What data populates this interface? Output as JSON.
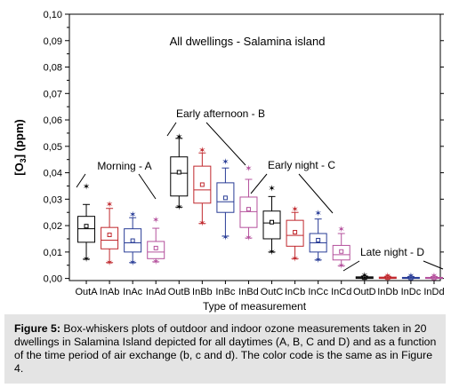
{
  "chart_data": {
    "type": "box",
    "title": "All dwellings - Salamina island",
    "ylabel": "[O3] (ppm)",
    "xlabel": "Type of measurement",
    "ylim": [
      0,
      0.1
    ],
    "yticks": [
      "0,00",
      "0,01",
      "0,02",
      "0,03",
      "0,04",
      "0,05",
      "0,06",
      "0,07",
      "0,08",
      "0,09",
      "0,10"
    ],
    "categories": [
      "OutA",
      "InAb",
      "InAc",
      "InAd",
      "OutB",
      "InBb",
      "InBc",
      "InBd",
      "OutC",
      "InCb",
      "InCc",
      "InCd",
      "OutD",
      "InDb",
      "InDc",
      "InDd"
    ],
    "series_colors": [
      "#000000",
      "#c0282d",
      "#283c96",
      "#b4509c"
    ],
    "boxes": [
      {
        "q1": 0.0137,
        "median": 0.0188,
        "q3": 0.0235,
        "mean": 0.0198,
        "wlo": 0.0073,
        "whi": 0.028,
        "pts": [
          0.0347,
          0.0073
        ]
      },
      {
        "q1": 0.0112,
        "median": 0.0145,
        "q3": 0.0193,
        "mean": 0.0165,
        "wlo": 0.006,
        "whi": 0.0265,
        "pts": [
          0.028,
          0.006
        ]
      },
      {
        "q1": 0.01,
        "median": 0.0135,
        "q3": 0.0188,
        "mean": 0.0143,
        "wlo": 0.006,
        "whi": 0.023,
        "pts": [
          0.024,
          0.006
        ]
      },
      {
        "q1": 0.0075,
        "median": 0.01,
        "q3": 0.014,
        "mean": 0.0115,
        "wlo": 0.0063,
        "whi": 0.019,
        "pts": [
          0.022,
          0.0063
        ]
      },
      {
        "q1": 0.0312,
        "median": 0.0398,
        "q3": 0.046,
        "mean": 0.0402,
        "wlo": 0.027,
        "whi": 0.053,
        "pts": [
          0.0535,
          0.027
        ]
      },
      {
        "q1": 0.0285,
        "median": 0.0335,
        "q3": 0.0425,
        "mean": 0.0355,
        "wlo": 0.0208,
        "whi": 0.0475,
        "pts": [
          0.0485,
          0.0208
        ]
      },
      {
        "q1": 0.025,
        "median": 0.029,
        "q3": 0.0362,
        "mean": 0.0305,
        "wlo": 0.016,
        "whi": 0.0418,
        "pts": [
          0.044,
          0.0155
        ]
      },
      {
        "q1": 0.0193,
        "median": 0.0253,
        "q3": 0.0308,
        "mean": 0.0262,
        "wlo": 0.0153,
        "whi": 0.0375,
        "pts": [
          0.0415,
          0.0153
        ]
      },
      {
        "q1": 0.015,
        "median": 0.021,
        "q3": 0.0255,
        "mean": 0.0213,
        "wlo": 0.01,
        "whi": 0.031,
        "pts": [
          0.034,
          0.01
        ]
      },
      {
        "q1": 0.0122,
        "median": 0.0163,
        "q3": 0.022,
        "mean": 0.0175,
        "wlo": 0.0075,
        "whi": 0.025,
        "pts": [
          0.026,
          0.0075
        ]
      },
      {
        "q1": 0.01,
        "median": 0.0135,
        "q3": 0.017,
        "mean": 0.0145,
        "wlo": 0.007,
        "whi": 0.0225,
        "pts": [
          0.0245,
          0.007
        ]
      },
      {
        "q1": 0.007,
        "median": 0.009,
        "q3": 0.0125,
        "mean": 0.0102,
        "wlo": 0.0048,
        "whi": 0.017,
        "pts": [
          0.0185,
          0.0048
        ]
      },
      {
        "q1": 0.0,
        "median": 0.0003,
        "q3": 0.0006,
        "mean": 0.0003,
        "wlo": 0.0,
        "whi": 0.0009,
        "pts": [
          0.001,
          0.0
        ]
      },
      {
        "q1": 0.0,
        "median": 0.0002,
        "q3": 0.0005,
        "mean": 0.0003,
        "wlo": 0.0,
        "whi": 0.0008,
        "pts": [
          0.0009,
          0.0
        ]
      },
      {
        "q1": 0.0,
        "median": 0.0002,
        "q3": 0.0004,
        "mean": 0.0002,
        "wlo": 0.0,
        "whi": 0.0007,
        "pts": [
          0.0008,
          0.0
        ]
      },
      {
        "q1": 0.0,
        "median": 0.0002,
        "q3": 0.0004,
        "mean": 0.0002,
        "wlo": 0.0,
        "whi": 0.0007,
        "pts": [
          0.0008,
          0.0
        ]
      }
    ],
    "annotations": [
      {
        "text": "Morning - A",
        "group": 0
      },
      {
        "text": "Early afternoon - B",
        "group": 1
      },
      {
        "text": "Early night - C",
        "group": 2
      },
      {
        "text": "Late night - D",
        "group": 3
      }
    ]
  },
  "caption": {
    "label": "Figure 5:",
    "text": "Box-whiskers plots of outdoor and indoor ozone measurements taken in 20 dwellings in Salamina Island depicted for all daytimes (A, B, C and D) and as a function of the time period of air exchange (b, c and d). The color code is the same as in Figure 4."
  }
}
